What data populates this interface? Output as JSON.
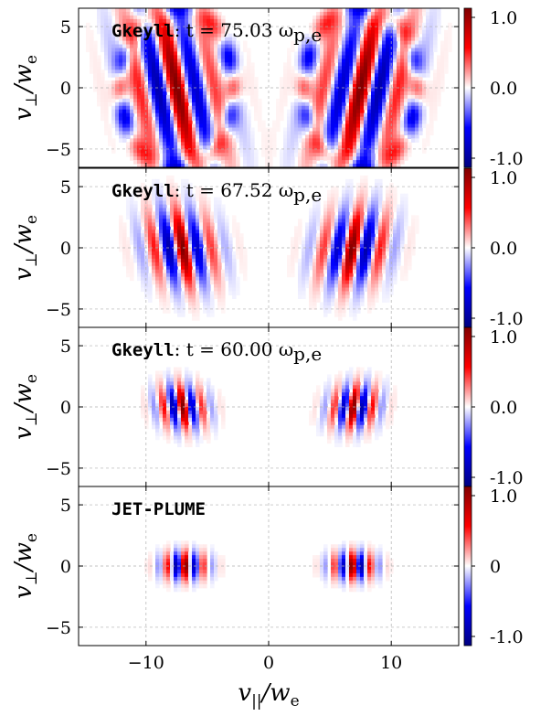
{
  "chart_data": {
    "type": "heatmap",
    "colormap": "seismic",
    "xlabel": "v_||/w_e",
    "ylabel": "v_⊥/w_e",
    "xlim": [
      -15.5,
      15.5
    ],
    "ylim": [
      -6.5,
      6.5
    ],
    "xticks": [
      -10,
      0,
      10
    ],
    "yticks": [
      5,
      0,
      -5
    ],
    "xtick_labels": [
      "−10",
      "0",
      "10"
    ],
    "ytick_labels": [
      "5",
      "0",
      "−5"
    ],
    "grid": true,
    "panels": [
      {
        "label_code": "Gkeyll",
        "label_math": ": t = 75.03 ω",
        "label_sub": "p,e",
        "colorbar": {
          "min": -1.0,
          "max": 1.0,
          "ticks": [
            "1.0",
            "0.0",
            "-1.0"
          ]
        },
        "lobe_centers_v_par": [
          -7.5,
          7.5
        ],
        "lobe_half_width_v_par": 3.5,
        "lobe_half_height_v_perp": 6.5,
        "band_spacing": 1.6,
        "tilt": 0.35,
        "halo": true
      },
      {
        "label_code": "Gkeyll",
        "label_math": ": t = 67.52 ω",
        "label_sub": "p,e",
        "colorbar": {
          "min": -1.0,
          "max": 1.0,
          "ticks": [
            "1.0",
            "0.0",
            "-1.0"
          ]
        },
        "lobe_centers_v_par": [
          -7.0,
          6.8
        ],
        "lobe_half_width_v_par": 2.7,
        "lobe_half_height_v_perp": 3.0,
        "band_spacing": 1.2,
        "tilt": 0.3,
        "halo": false
      },
      {
        "label_code": "Gkeyll",
        "label_math": ": t = 60.00 ω",
        "label_sub": "p,e",
        "colorbar": {
          "min": -1.0,
          "max": 1.0,
          "ticks": [
            "1.0",
            "0.0",
            "-1.0"
          ]
        },
        "lobe_centers_v_par": [
          -7.0,
          6.9
        ],
        "lobe_half_width_v_par": 1.9,
        "lobe_half_height_v_perp": 1.7,
        "band_spacing": 0.8,
        "tilt": 0.25,
        "halo": false
      },
      {
        "label_code": "JET-PLUME",
        "label_math": "",
        "label_sub": "",
        "colorbar": {
          "min": -1.0,
          "max": 1.0,
          "ticks": [
            "1.0",
            "0",
            "-1.0"
          ]
        },
        "lobe_centers_v_par": [
          -6.8,
          6.8
        ],
        "lobe_half_width_v_par": 1.8,
        "lobe_half_height_v_perp": 1.1,
        "band_spacing": 0.75,
        "tilt": 0.0,
        "halo": false
      }
    ]
  }
}
